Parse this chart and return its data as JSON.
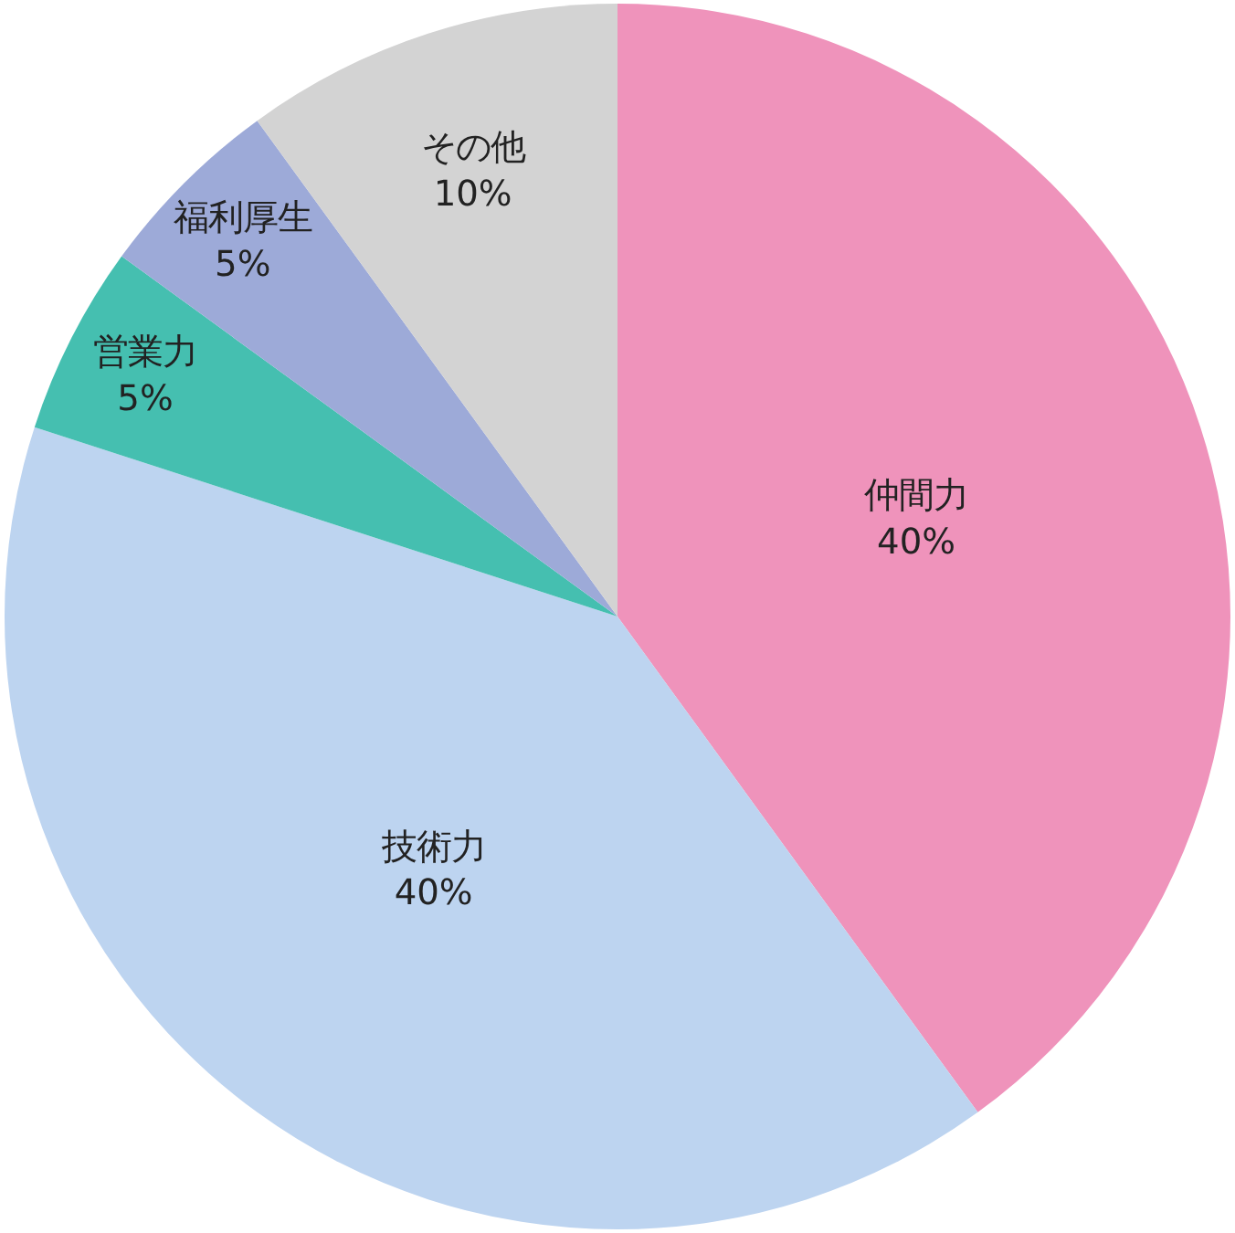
{
  "chart_data": {
    "type": "pie",
    "categories": [
      "仲間力",
      "技術力",
      "営業力",
      "福利厚生",
      "その他"
    ],
    "values": [
      40,
      40,
      5,
      5,
      10
    ],
    "value_labels": [
      "40%",
      "40%",
      "5%",
      "5%",
      "10%"
    ],
    "colors": [
      "#ef93bb",
      "#bdd4f0",
      "#45bfb0",
      "#9daad8",
      "#d3d3d3"
    ],
    "legend": false
  }
}
